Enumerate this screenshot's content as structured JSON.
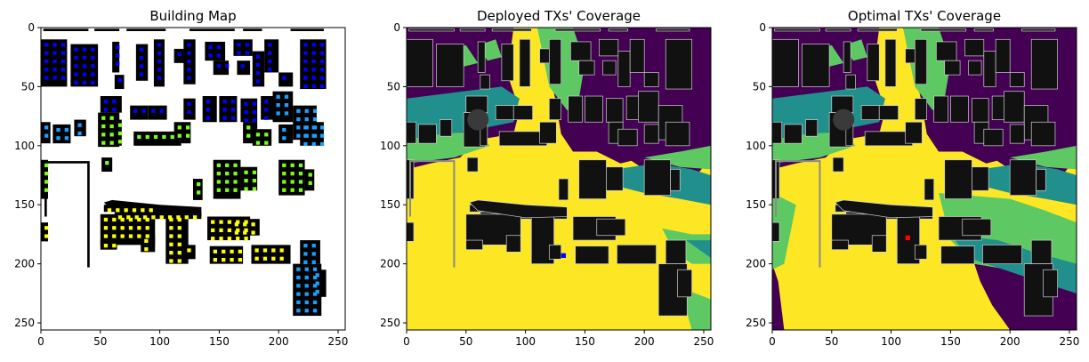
{
  "chart_data": [
    {
      "type": "heatmap",
      "title": "Building Map",
      "xlabel": "",
      "ylabel": "",
      "x_ticks": [
        0,
        50,
        100,
        150,
        200,
        250
      ],
      "y_ticks": [
        0,
        50,
        100,
        150,
        200,
        250
      ],
      "xlim": [
        0,
        256
      ],
      "ylim": [
        256,
        0
      ],
      "grid": false,
      "background": "#ffffff",
      "buildings": [
        [
          2,
          40,
          1,
          3
        ],
        [
          45,
          66,
          1,
          3
        ],
        [
          72,
          105,
          1,
          3
        ],
        [
          125,
          163,
          1,
          3
        ],
        [
          170,
          186,
          1,
          3
        ],
        [
          210,
          238,
          1,
          3
        ],
        [
          0,
          22,
          10,
          50
        ],
        [
          25,
          48,
          14,
          50
        ],
        [
          60,
          66,
          12,
          38
        ],
        [
          62,
          70,
          40,
          52
        ],
        [
          80,
          90,
          14,
          45
        ],
        [
          95,
          104,
          10,
          50
        ],
        [
          112,
          124,
          18,
          30
        ],
        [
          120,
          130,
          10,
          48
        ],
        [
          138,
          155,
          12,
          28
        ],
        [
          145,
          158,
          28,
          40
        ],
        [
          162,
          178,
          10,
          24
        ],
        [
          165,
          176,
          28,
          40
        ],
        [
          178,
          188,
          20,
          50
        ],
        [
          188,
          200,
          10,
          38
        ],
        [
          200,
          212,
          38,
          50
        ],
        [
          218,
          240,
          10,
          52
        ],
        [
          50,
          68,
          58,
          72
        ],
        [
          75,
          90,
          66,
          78
        ],
        [
          90,
          106,
          66,
          78
        ],
        [
          120,
          130,
          60,
          78
        ],
        [
          136,
          148,
          58,
          80
        ],
        [
          150,
          165,
          58,
          80
        ],
        [
          168,
          182,
          60,
          80
        ],
        [
          185,
          196,
          58,
          78
        ],
        [
          195,
          212,
          54,
          80
        ],
        [
          212,
          232,
          66,
          95
        ],
        [
          0,
          8,
          80,
          98
        ],
        [
          10,
          25,
          82,
          98
        ],
        [
          28,
          38,
          78,
          92
        ],
        [
          48,
          66,
          72,
          101
        ],
        [
          62,
          68,
          78,
          100
        ],
        [
          78,
          118,
          88,
          100
        ],
        [
          112,
          126,
          80,
          98
        ],
        [
          170,
          182,
          80,
          98
        ],
        [
          178,
          194,
          86,
          100
        ],
        [
          200,
          212,
          82,
          98
        ],
        [
          218,
          238,
          80,
          100
        ],
        [
          145,
          168,
          112,
          145
        ],
        [
          168,
          182,
          118,
          138
        ],
        [
          200,
          222,
          112,
          142
        ],
        [
          222,
          230,
          120,
          138
        ],
        [
          0,
          6,
          112,
          145
        ],
        [
          51,
          60,
          110,
          122
        ],
        [
          53,
          95,
          150,
          156
        ],
        [
          62,
          135,
          156,
          162
        ],
        [
          128,
          136,
          128,
          146
        ],
        [
          140,
          176,
          160,
          180
        ],
        [
          160,
          184,
          162,
          176
        ],
        [
          105,
          124,
          158,
          200
        ],
        [
          120,
          130,
          184,
          196
        ],
        [
          50,
          96,
          158,
          184
        ],
        [
          50,
          64,
          180,
          188
        ],
        [
          84,
          96,
          176,
          190
        ],
        [
          142,
          170,
          185,
          200
        ],
        [
          177,
          210,
          184,
          200
        ],
        [
          0,
          6,
          165,
          181
        ],
        [
          218,
          235,
          180,
          200
        ],
        [
          212,
          236,
          200,
          244
        ],
        [
          228,
          240,
          205,
          228
        ]
      ],
      "point_markers": {
        "colors": [
          "#0000ff",
          "#1aa0ff",
          "#7bff16",
          "#ffff00"
        ],
        "description_by_region": [
          "top: blue",
          "middle: cyan and green",
          "bottom: green and yellow"
        ]
      }
    },
    {
      "type": "heatmap",
      "title": "Deployed TXs' Coverage",
      "xlabel": "",
      "ylabel": "",
      "x_ticks": [
        0,
        50,
        100,
        150,
        200,
        250
      ],
      "y_ticks": [
        0,
        50,
        100,
        150,
        200,
        250
      ],
      "xlim": [
        0,
        256
      ],
      "ylim": [
        256,
        0
      ],
      "grid": false,
      "colormap": [
        "#440154",
        "#21908d",
        "#5ec962",
        "#fde725"
      ],
      "building_color": "#111111",
      "tx_marker": {
        "x": 132,
        "y": 193,
        "color": "#0000ff"
      }
    },
    {
      "type": "heatmap",
      "title": "Optimal TXs' Coverage",
      "xlabel": "",
      "ylabel": "",
      "x_ticks": [
        0,
        50,
        100,
        150,
        200,
        250
      ],
      "y_ticks": [
        0,
        50,
        100,
        150,
        200,
        250
      ],
      "xlim": [
        0,
        256
      ],
      "ylim": [
        256,
        0
      ],
      "grid": false,
      "colormap": [
        "#440154",
        "#21908d",
        "#5ec962",
        "#fde725"
      ],
      "building_color": "#111111",
      "tx_marker": {
        "x": 114,
        "y": 178,
        "color": "#ff0000"
      }
    }
  ]
}
